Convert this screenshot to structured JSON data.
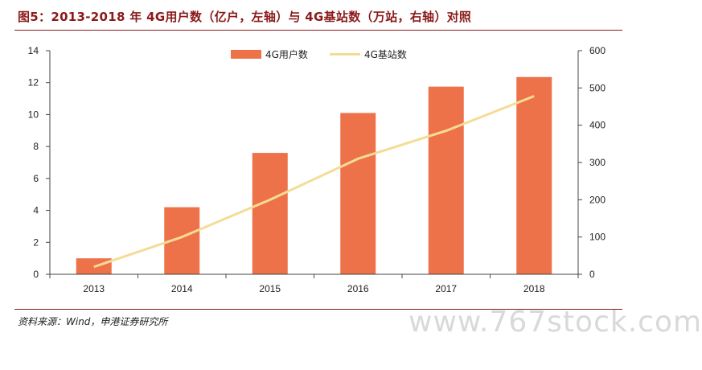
{
  "title": "图5：2013-2018 年 4G用户数（亿户，左轴）与 4G基站数（万站，右轴）对照",
  "source": "资料来源：Wind，申港证券研究所",
  "watermark": "www.767stock.com",
  "colors": {
    "bar": "#ed7249",
    "line": "#f5dc96",
    "accent": "#8b1a1a"
  },
  "chart_data": {
    "type": "bar",
    "categories": [
      "2013",
      "2014",
      "2015",
      "2016",
      "2017",
      "2018"
    ],
    "series": [
      {
        "name": "4G用户数",
        "type": "bar",
        "axis": "left",
        "values": [
          1.0,
          4.2,
          7.6,
          10.1,
          11.75,
          12.35
        ]
      },
      {
        "name": "4G基站数",
        "type": "line",
        "axis": "right",
        "values": [
          20,
          100,
          200,
          310,
          385,
          478
        ]
      }
    ],
    "ylim_left": [
      0,
      14
    ],
    "yticks_left": [
      "0",
      "2",
      "4",
      "6",
      "8",
      "10",
      "12",
      "14"
    ],
    "ylim_right": [
      0,
      600
    ],
    "yticks_right": [
      "0",
      "100",
      "200",
      "300",
      "400",
      "500",
      "600"
    ],
    "legend": "top-center",
    "grid": false
  }
}
